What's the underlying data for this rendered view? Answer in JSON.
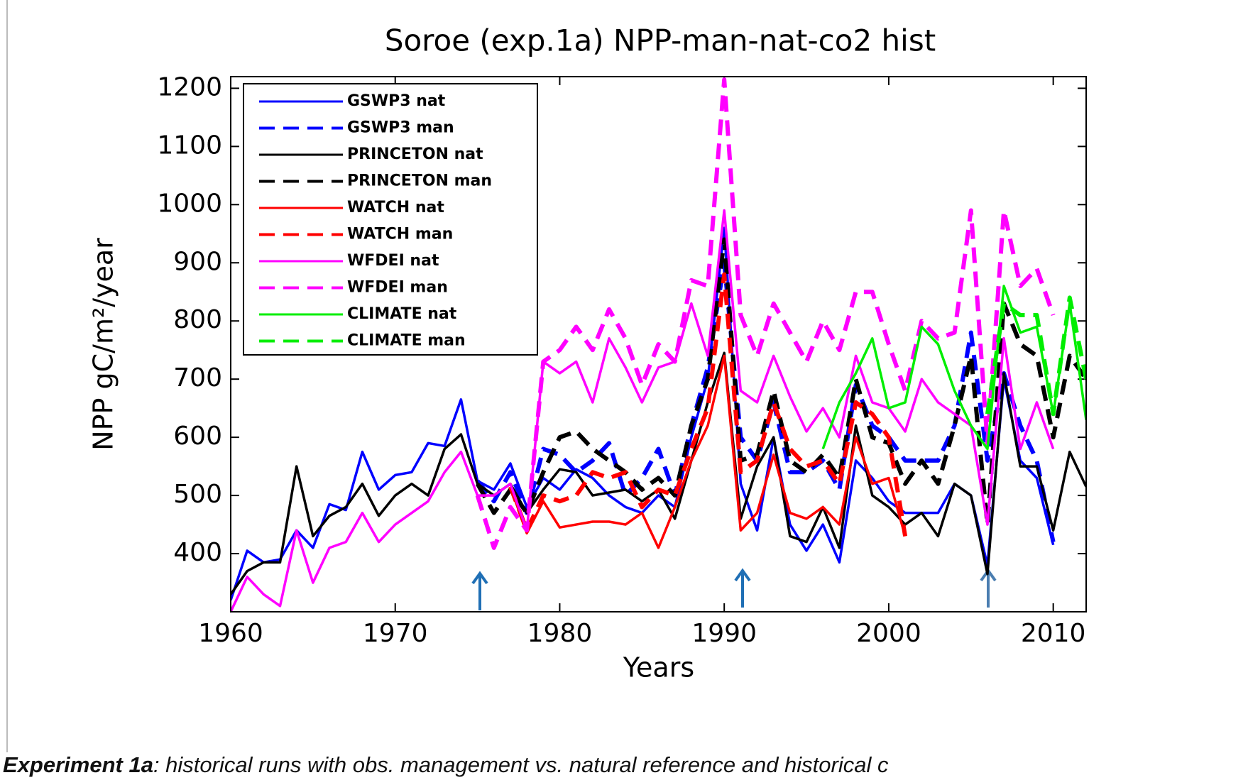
{
  "chart_data": {
    "type": "line",
    "title": "Soroe (exp.1a) NPP-man-nat-co2 hist",
    "x_label": "Years",
    "y_label": "NPP gC/m²/year",
    "xlim": [
      1960,
      2012
    ],
    "ylim": [
      300,
      1220
    ],
    "xticks": [
      1960,
      1970,
      1980,
      1990,
      2000,
      2010
    ],
    "yticks": [
      400,
      500,
      600,
      700,
      800,
      900,
      1000,
      1100,
      1200
    ],
    "legend": "upper-left",
    "series": [
      {
        "name": "GSWP3 nat",
        "color": "#0000ff",
        "style": "solid",
        "x": [
          1960,
          1961,
          1962,
          1963,
          1964,
          1965,
          1966,
          1967,
          1968,
          1969,
          1970,
          1971,
          1972,
          1973,
          1974,
          1975,
          1976,
          1977,
          1978,
          1979,
          1980,
          1981,
          1982,
          1983,
          1984,
          1985,
          1986,
          1987,
          1988,
          1989,
          1990,
          1991,
          1992,
          1993,
          1994,
          1995,
          1996,
          1997,
          1998,
          1999,
          2000,
          2001,
          2002,
          2003,
          2004,
          2005,
          2006,
          2007,
          2008,
          2009,
          2010
        ],
        "values": [
          320,
          405,
          385,
          390,
          440,
          410,
          485,
          475,
          575,
          510,
          535,
          540,
          590,
          585,
          665,
          525,
          510,
          555,
          480,
          530,
          510,
          545,
          530,
          500,
          480,
          470,
          500,
          480,
          600,
          700,
          960,
          520,
          440,
          600,
          450,
          405,
          450,
          385,
          560,
          530,
          490,
          470,
          470,
          470,
          520,
          500,
          380,
          700,
          560,
          530,
          415
        ]
      },
      {
        "name": "GSWP3 man",
        "color": "#0000ff",
        "style": "dashed",
        "x": [
          1975,
          1976,
          1977,
          1978,
          1979,
          1980,
          1981,
          1982,
          1983,
          1984,
          1985,
          1986,
          1987,
          1988,
          1989,
          1990,
          1991,
          1992,
          1993,
          1994,
          1995,
          1996,
          1997,
          1998,
          1999,
          2000,
          2001,
          2002,
          2003,
          2004,
          2005,
          2006,
          2007,
          2008,
          2009,
          2010
        ],
        "values": [
          525,
          490,
          540,
          470,
          580,
          570,
          540,
          560,
          590,
          500,
          530,
          580,
          500,
          620,
          720,
          900,
          600,
          560,
          660,
          540,
          540,
          560,
          510,
          690,
          620,
          600,
          560,
          560,
          560,
          620,
          780,
          560,
          710,
          620,
          560,
          420
        ]
      },
      {
        "name": "PRINCETON nat",
        "color": "#000000",
        "style": "solid",
        "x": [
          1960,
          1961,
          1962,
          1963,
          1964,
          1965,
          1966,
          1967,
          1968,
          1969,
          1970,
          1971,
          1972,
          1973,
          1974,
          1975,
          1976,
          1977,
          1978,
          1979,
          1980,
          1981,
          1982,
          1983,
          1984,
          1985,
          1986,
          1987,
          1988,
          1989,
          1990,
          1991,
          1992,
          1993,
          1994,
          1995,
          1996,
          1997,
          1998,
          1999,
          2000,
          2001,
          2002,
          2003,
          2004,
          2005,
          2006,
          2007,
          2008,
          2009,
          2010,
          2011,
          2012
        ],
        "values": [
          330,
          370,
          385,
          385,
          550,
          430,
          465,
          480,
          520,
          465,
          500,
          520,
          500,
          580,
          605,
          520,
          500,
          520,
          470,
          510,
          545,
          540,
          500,
          505,
          510,
          490,
          510,
          460,
          560,
          660,
          745,
          460,
          550,
          600,
          430,
          420,
          480,
          410,
          620,
          500,
          480,
          450,
          470,
          430,
          520,
          500,
          365,
          710,
          550,
          550,
          440,
          575,
          515
        ]
      },
      {
        "name": "PRINCETON man",
        "color": "#000000",
        "style": "dashed",
        "x": [
          1975,
          1976,
          1977,
          1978,
          1979,
          1980,
          1981,
          1982,
          1983,
          1984,
          1985,
          1986,
          1987,
          1988,
          1989,
          1990,
          1991,
          1992,
          1993,
          1994,
          1995,
          1996,
          1997,
          1998,
          1999,
          2000,
          2001,
          2002,
          2003,
          2004,
          2005,
          2006,
          2007,
          2008,
          2009,
          2010,
          2011,
          2012
        ],
        "values": [
          520,
          470,
          510,
          470,
          540,
          600,
          610,
          580,
          560,
          540,
          510,
          530,
          500,
          620,
          700,
          940,
          560,
          570,
          680,
          560,
          540,
          570,
          530,
          700,
          600,
          590,
          520,
          560,
          520,
          620,
          740,
          450,
          830,
          760,
          740,
          600,
          740,
          700
        ]
      },
      {
        "name": "WATCH nat",
        "color": "#ff0000",
        "style": "solid",
        "x": [
          1977,
          1978,
          1979,
          1980,
          1981,
          1982,
          1983,
          1984,
          1985,
          1986,
          1987,
          1988,
          1989,
          1990,
          1991,
          1992,
          1993,
          1994,
          1995,
          1996,
          1997,
          1998,
          1999,
          2000,
          2001
        ],
        "values": [
          515,
          435,
          490,
          445,
          450,
          455,
          455,
          450,
          470,
          410,
          480,
          560,
          620,
          740,
          440,
          470,
          570,
          470,
          460,
          480,
          450,
          600,
          520,
          530,
          430
        ]
      },
      {
        "name": "WATCH man",
        "color": "#ff0000",
        "style": "dashed",
        "x": [
          1977,
          1978,
          1979,
          1980,
          1981,
          1982,
          1983,
          1984,
          1985,
          1986,
          1987,
          1988,
          1989,
          1990,
          1991,
          1992,
          1993,
          1994,
          1995,
          1996,
          1997,
          1998,
          1999,
          2000,
          2001
        ],
        "values": [
          515,
          440,
          500,
          490,
          500,
          540,
          530,
          540,
          480,
          510,
          500,
          580,
          650,
          880,
          540,
          560,
          660,
          580,
          550,
          560,
          520,
          660,
          640,
          600,
          430
        ]
      },
      {
        "name": "WFDEI nat",
        "color": "#ff00ff",
        "style": "solid",
        "x": [
          1960,
          1961,
          1962,
          1963,
          1964,
          1965,
          1966,
          1967,
          1968,
          1969,
          1970,
          1971,
          1972,
          1973,
          1974,
          1975,
          1976,
          1977,
          1978,
          1979,
          1980,
          1981,
          1982,
          1983,
          1984,
          1985,
          1986,
          1987,
          1988,
          1989,
          1990,
          1991,
          1992,
          1993,
          1994,
          1995,
          1996,
          1997,
          1998,
          1999,
          2000,
          2001,
          2002,
          2003,
          2004,
          2005,
          2006,
          2007,
          2008,
          2009,
          2010
        ],
        "values": [
          300,
          360,
          330,
          310,
          440,
          350,
          410,
          420,
          470,
          420,
          450,
          470,
          490,
          540,
          575,
          500,
          500,
          520,
          440,
          730,
          710,
          730,
          660,
          770,
          720,
          660,
          720,
          730,
          830,
          740,
          990,
          680,
          660,
          740,
          670,
          610,
          650,
          600,
          740,
          660,
          650,
          610,
          700,
          660,
          640,
          620,
          450,
          770,
          580,
          660,
          580
        ]
      },
      {
        "name": "WFDEI man",
        "color": "#ff00ff",
        "style": "dashed",
        "x": [
          1975,
          1976,
          1977,
          1978,
          1979,
          1980,
          1981,
          1982,
          1983,
          1984,
          1985,
          1986,
          1987,
          1988,
          1989,
          1990,
          1991,
          1992,
          1993,
          1994,
          1995,
          1996,
          1997,
          1998,
          1999,
          2000,
          2001,
          2002,
          2003,
          2004,
          2005,
          2006,
          2007,
          2008,
          2009,
          2010
        ],
        "values": [
          500,
          410,
          480,
          440,
          730,
          750,
          790,
          750,
          820,
          770,
          690,
          760,
          730,
          870,
          860,
          1215,
          810,
          740,
          830,
          780,
          730,
          800,
          750,
          850,
          850,
          760,
          680,
          800,
          770,
          780,
          990,
          590,
          990,
          860,
          890,
          810
        ]
      },
      {
        "name": "CLIMATE nat",
        "color": "#00ee00",
        "style": "solid",
        "x": [
          1996,
          1997,
          1998,
          1999,
          2000,
          2001,
          2002,
          2003,
          2004,
          2005,
          2006,
          2007,
          2008,
          2009,
          2010,
          2011,
          2012
        ],
        "values": [
          580,
          660,
          710,
          770,
          650,
          660,
          790,
          760,
          680,
          620,
          580,
          860,
          780,
          790,
          640,
          830,
          630
        ]
      },
      {
        "name": "CLIMATE man",
        "color": "#00ee00",
        "style": "dashed",
        "x": [
          2006,
          2007,
          2008,
          2009,
          2010,
          2011,
          2012
        ],
        "values": [
          640,
          830,
          810,
          810,
          640,
          840,
          700
        ]
      }
    ]
  },
  "caption": {
    "lead": "Experiment 1a",
    "text": ": historical runs with obs. management vs. natural reference and historical c"
  }
}
